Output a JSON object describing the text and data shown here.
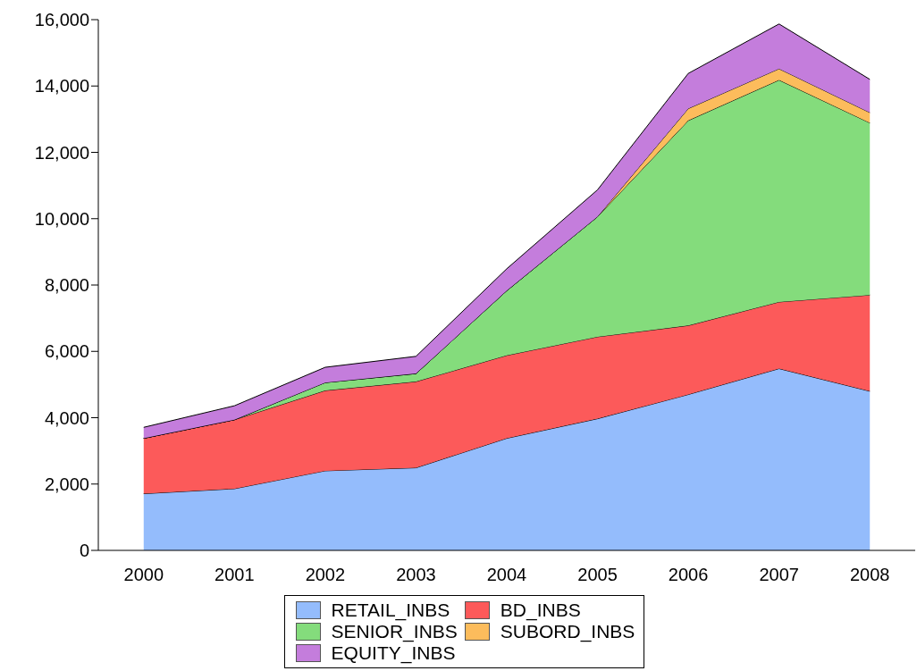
{
  "chart_data": {
    "type": "area",
    "stacked": true,
    "categories": [
      "2000",
      "2001",
      "2002",
      "2003",
      "2004",
      "2005",
      "2006",
      "2007",
      "2008"
    ],
    "series": [
      {
        "name": "RETAIL_INBS",
        "color": "#94bcfc",
        "values": [
          1710,
          1860,
          2400,
          2490,
          3380,
          3970,
          4700,
          5480,
          4800
        ]
      },
      {
        "name": "BD_INBS",
        "color": "#fc5a5a",
        "values": [
          1670,
          2080,
          2420,
          2600,
          2500,
          2470,
          2080,
          2010,
          2900
        ]
      },
      {
        "name": "SENIOR_INBS",
        "color": "#84dc7c",
        "values": [
          0,
          0,
          240,
          240,
          1950,
          3620,
          6180,
          6690,
          5190
        ]
      },
      {
        "name": "SUBORD_INBS",
        "color": "#fcbc5c",
        "values": [
          0,
          0,
          0,
          0,
          0,
          0,
          360,
          340,
          310
        ]
      },
      {
        "name": "EQUITY_INBS",
        "color": "#c47ddc",
        "values": [
          330,
          420,
          460,
          520,
          660,
          810,
          1060,
          1350,
          1000
        ]
      }
    ],
    "ylim": [
      0,
      16000
    ],
    "yticks": [
      {
        "value": 0,
        "label": "0"
      },
      {
        "value": 2000,
        "label": "2,000"
      },
      {
        "value": 4000,
        "label": "4,000"
      },
      {
        "value": 6000,
        "label": "6,000"
      },
      {
        "value": 8000,
        "label": "8,000"
      },
      {
        "value": 10000,
        "label": "10,000"
      },
      {
        "value": 12000,
        "label": "12,000"
      },
      {
        "value": 14000,
        "label": "14,000"
      },
      {
        "value": 16000,
        "label": "16,000"
      }
    ],
    "grid": false,
    "legend": "bottom"
  }
}
